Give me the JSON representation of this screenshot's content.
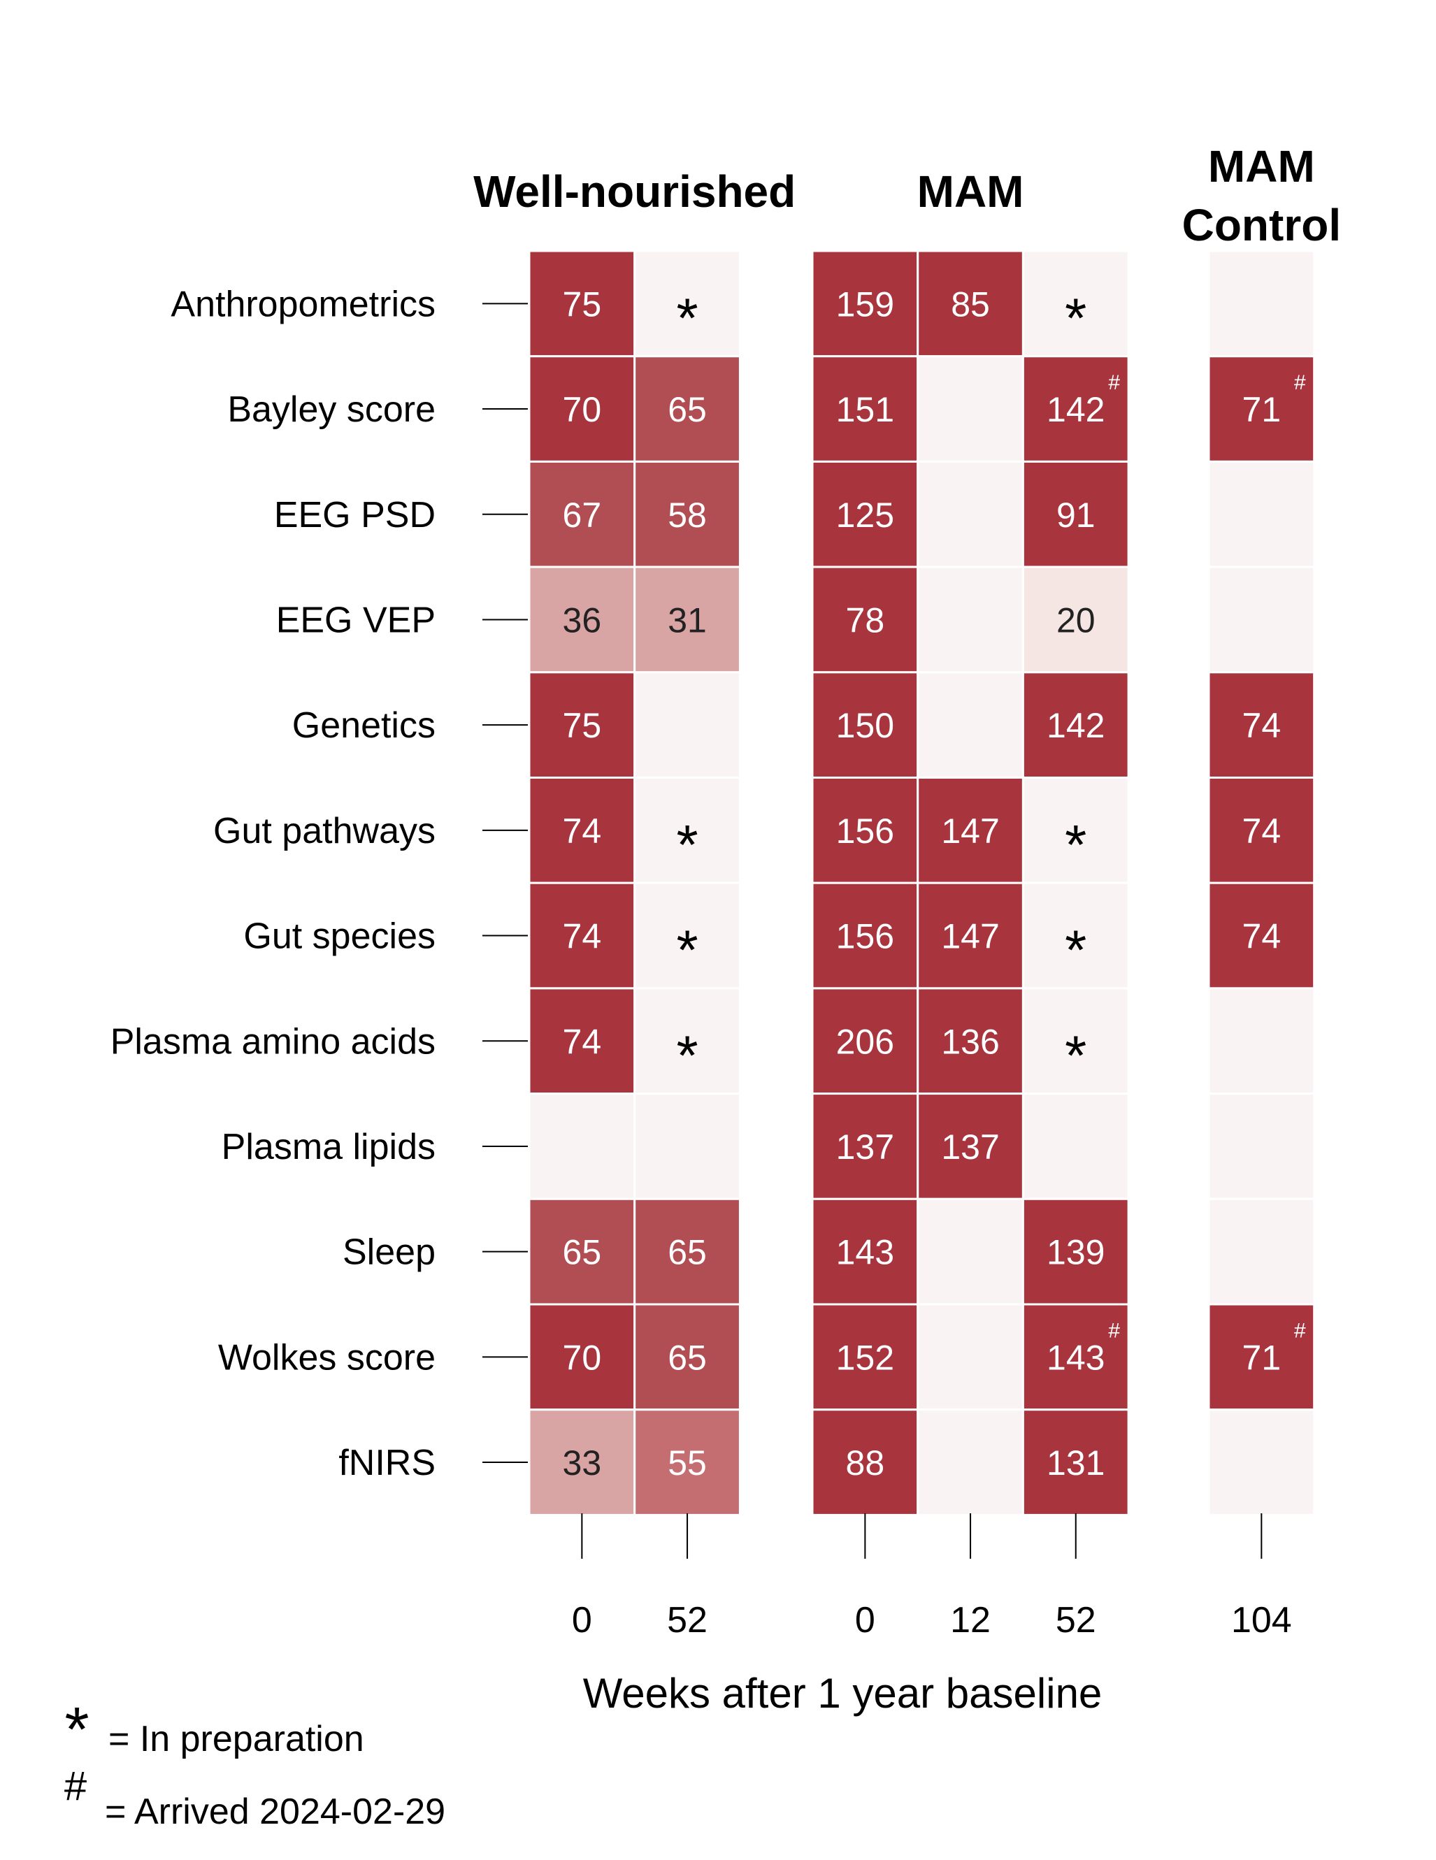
{
  "chart_data": {
    "type": "heatmap",
    "xlabel": "Weeks after 1 year baseline",
    "rows": [
      "Anthropometrics",
      "Bayley score",
      "EEG PSD",
      "EEG VEP",
      "Genetics",
      "Gut pathways",
      "Gut species",
      "Plasma amino acids",
      "Plasma lipids",
      "Sleep",
      "Wolkes score",
      "fNIRS"
    ],
    "groups": [
      {
        "title": "Well-nourished",
        "columns": [
          "0",
          "52"
        ],
        "cells": [
          [
            {
              "v": 75
            },
            {
              "mark": "*"
            }
          ],
          [
            {
              "v": 70
            },
            {
              "v": 65
            }
          ],
          [
            {
              "v": 67
            },
            {
              "v": 58
            }
          ],
          [
            {
              "v": 36
            },
            {
              "v": 31
            }
          ],
          [
            {
              "v": 75
            },
            {}
          ],
          [
            {
              "v": 74
            },
            {
              "mark": "*"
            }
          ],
          [
            {
              "v": 74
            },
            {
              "mark": "*"
            }
          ],
          [
            {
              "v": 74
            },
            {
              "mark": "*"
            }
          ],
          [
            {},
            {}
          ],
          [
            {
              "v": 65
            },
            {
              "v": 65
            }
          ],
          [
            {
              "v": 70
            },
            {
              "v": 65
            }
          ],
          [
            {
              "v": 33
            },
            {
              "v": 55
            }
          ]
        ]
      },
      {
        "title": "MAM",
        "columns": [
          "0",
          "12",
          "52"
        ],
        "cells": [
          [
            {
              "v": 159
            },
            {
              "v": 85
            },
            {
              "mark": "*"
            }
          ],
          [
            {
              "v": 151
            },
            {},
            {
              "v": 142,
              "sup": "#"
            }
          ],
          [
            {
              "v": 125
            },
            {},
            {
              "v": 91
            }
          ],
          [
            {
              "v": 78
            },
            {},
            {
              "v": 20
            }
          ],
          [
            {
              "v": 150
            },
            {},
            {
              "v": 142
            }
          ],
          [
            {
              "v": 156
            },
            {
              "v": 147
            },
            {
              "mark": "*"
            }
          ],
          [
            {
              "v": 156
            },
            {
              "v": 147
            },
            {
              "mark": "*"
            }
          ],
          [
            {
              "v": 206
            },
            {
              "v": 136
            },
            {
              "mark": "*"
            }
          ],
          [
            {
              "v": 137
            },
            {
              "v": 137
            },
            {}
          ],
          [
            {
              "v": 143
            },
            {},
            {
              "v": 139
            }
          ],
          [
            {
              "v": 152
            },
            {},
            {
              "v": 143,
              "sup": "#"
            }
          ],
          [
            {
              "v": 88
            },
            {},
            {
              "v": 131
            }
          ]
        ]
      },
      {
        "title": [
          "MAM",
          "Control"
        ],
        "columns": [
          "104"
        ],
        "cells": [
          [
            {}
          ],
          [
            {
              "v": 71,
              "sup": "#"
            }
          ],
          [
            {}
          ],
          [
            {}
          ],
          [
            {
              "v": 74
            }
          ],
          [
            {
              "v": 74
            }
          ],
          [
            {
              "v": 74
            }
          ],
          [
            {}
          ],
          [
            {}
          ],
          [
            {}
          ],
          [
            {
              "v": 71,
              "sup": "#"
            }
          ],
          [
            {}
          ]
        ]
      }
    ],
    "legend": [
      {
        "symbol": "*",
        "text": "= In preparation"
      },
      {
        "symbol": "#",
        "text": "= Arrived 2024-02-29"
      }
    ],
    "colors": {
      "empty": "#f9f4f3",
      "high": "#a8343e",
      "mid": "#c56e72",
      "low": "#d8a4a4",
      "lowest": "#f5e5e3",
      "grid": "#ffffff"
    }
  }
}
